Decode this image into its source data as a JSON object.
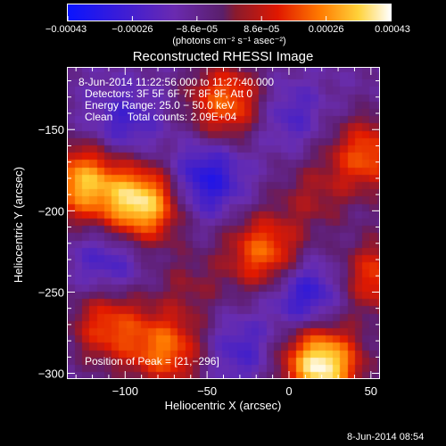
{
  "chart_data": {
    "type": "heatmap",
    "title": "Reconstructed RHESSI Image",
    "xlabel": "Heliocentric X (arcsec)",
    "ylabel": "Heliocentric Y (arcsec)",
    "xlim": [
      -135,
      55
    ],
    "ylim": [
      -303,
      -112
    ],
    "x_ticks": [
      -100,
      -50,
      0,
      50
    ],
    "x_tick_labels": [
      "−100",
      "−50",
      "0",
      "50"
    ],
    "y_ticks": [
      -150,
      -200,
      -250,
      -300
    ],
    "y_tick_labels": [
      "−150",
      "−200",
      "−250",
      "−300"
    ],
    "colorbar": {
      "range": [
        -0.00043,
        0.00043
      ],
      "colormap": "blue-purple-red-orange-yellow-white",
      "tick_labels": [
        "−0.00043",
        "−0.00026",
        "−8.6e−05",
        "8.6e−05",
        "0.00026",
        "0.00043"
      ],
      "units_label": "(photons cm⁻² s⁻¹ asec⁻²)"
    },
    "info_lines": [
      "8-Jun-2014 11:22:56.000 to 11:27:40.000",
      "Detectors: 3F 5F 6F 7F 8F 9F, Att 0",
      "Energy Range: 25.0 − 50.0 keV",
      "Clean     Total counts: 2.09E+04"
    ],
    "peak_label": "Position of Peak = [21,−296]",
    "sources": [
      {
        "x": 20,
        "y": -294,
        "amp": 1.0
      },
      {
        "x": -90,
        "y": -195,
        "amp": 0.9
      },
      {
        "x": -126,
        "y": -182,
        "amp": 0.75
      },
      {
        "x": -38,
        "y": -132,
        "amp": 0.6
      },
      {
        "x": 48,
        "y": -165,
        "amp": 0.55
      },
      {
        "x": -15,
        "y": -225,
        "amp": 0.6
      },
      {
        "x": 55,
        "y": -240,
        "amp": 0.5
      },
      {
        "x": -110,
        "y": -270,
        "amp": 0.5
      },
      {
        "x": -75,
        "y": -285,
        "amp": 0.6
      },
      {
        "x": 15,
        "y": -190,
        "amp": 0.25
      },
      {
        "x": -60,
        "y": -245,
        "amp": 0.2
      }
    ],
    "holes": [
      {
        "x": -50,
        "y": -180,
        "amp": 0.9
      },
      {
        "x": 10,
        "y": -250,
        "amp": 0.8
      },
      {
        "x": -100,
        "y": -145,
        "amp": 0.55
      },
      {
        "x": 0,
        "y": -140,
        "amp": 0.45
      },
      {
        "x": -110,
        "y": -230,
        "amp": 0.55
      },
      {
        "x": -30,
        "y": -285,
        "amp": 0.5
      }
    ]
  },
  "timestamp": "8-Jun-2014 08:54"
}
